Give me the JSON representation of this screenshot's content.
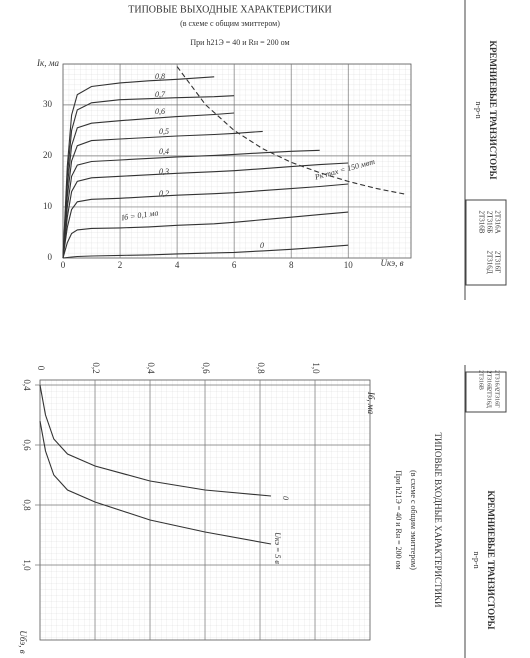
{
  "chart_data": [
    {
      "type": "line",
      "title": "ТИПОВЫЕ ВЫХОДНЫЕ ХАРАКТЕРИСТИКИ",
      "subtitle": "(в схеме с общим эмиттером)",
      "note": "При h21Э = 40 и Rн = 200 ом",
      "x_label": "Uкэ, в",
      "y_label": "Iк, ма",
      "xlim": [
        0,
        12.2
      ],
      "ylim": [
        0,
        38
      ],
      "xticks": [
        0,
        2,
        4,
        6,
        8,
        10
      ],
      "yticks": [
        0,
        10,
        20,
        30
      ],
      "grid": true,
      "color": "#333333",
      "x": [
        0,
        0.15,
        0.3,
        0.5,
        1,
        2,
        3,
        4,
        5.3,
        6,
        7,
        8,
        9,
        10
      ],
      "series": [
        {
          "name": "0,8",
          "values": [
            0,
            18,
            28,
            32,
            33.6,
            34.3,
            34.7,
            35,
            35.5,
            null,
            null,
            null,
            null,
            null
          ]
        },
        {
          "name": "0,7",
          "values": [
            0,
            16,
            25,
            29,
            30.4,
            31,
            31.2,
            31.4,
            31.6,
            31.8,
            null,
            null,
            null,
            null
          ]
        },
        {
          "name": "0,6",
          "values": [
            0,
            14,
            22,
            25.5,
            26.4,
            26.9,
            27.3,
            27.7,
            28.1,
            28.4,
            null,
            null,
            null,
            null
          ]
        },
        {
          "name": "0,5",
          "values": [
            0,
            12,
            19,
            22,
            23,
            23.3,
            23.6,
            23.9,
            24.2,
            24.4,
            24.8,
            null,
            null,
            null
          ]
        },
        {
          "name": "0,4",
          "values": [
            0,
            10,
            16,
            18.2,
            18.9,
            19.2,
            19.5,
            19.8,
            20.1,
            20.3,
            20.6,
            20.9,
            21.1,
            null
          ]
        },
        {
          "name": "0,3",
          "values": [
            0,
            8,
            13,
            15,
            15.7,
            16,
            16.3,
            16.6,
            16.9,
            17.1,
            17.5,
            17.9,
            18.3,
            18.6
          ]
        },
        {
          "name": "0,2",
          "values": [
            0,
            6,
            9.5,
            11,
            11.5,
            11.7,
            12,
            12.3,
            12.6,
            12.8,
            13.2,
            13.6,
            14,
            14.5
          ]
        },
        {
          "name": "Iб = 0,1 ма",
          "values": [
            0,
            3,
            4.8,
            5.5,
            5.8,
            5.9,
            6.1,
            6.4,
            6.7,
            7,
            7.5,
            8,
            8.5,
            9
          ]
        },
        {
          "name": "0",
          "values": [
            0,
            0.1,
            0.2,
            0.3,
            0.4,
            0.5,
            0.6,
            0.8,
            1,
            1.1,
            1.4,
            1.7,
            2.1,
            2.5
          ]
        },
        {
          "name": "Pк max = 150 мвт",
          "line_style": "dashed",
          "x": [
            4,
            5,
            6,
            7,
            8,
            9,
            10,
            11,
            12
          ],
          "values": [
            37.5,
            30,
            25,
            21.4,
            18.75,
            16.7,
            15,
            13.6,
            12.5
          ]
        }
      ]
    },
    {
      "type": "line",
      "title": "ТИПОВЫЕ ВХОДНЫЕ ХАРАКТЕРИСТИКИ",
      "subtitle": "(в схеме с общим эмиттером)",
      "note": "При h21Э = 40 и Rн = 200 ом",
      "x_label": "Iб, ма",
      "y_label": "Uбэ, в",
      "xlim": [
        0,
        1.2
      ],
      "ylim": [
        0.4,
        1.2
      ],
      "xticks": [
        0,
        {
          "value": 0.2,
          "label": "0,2"
        },
        {
          "value": 0.4,
          "label": "0,4"
        },
        {
          "value": 0.6,
          "label": "0,6"
        },
        {
          "value": 0.8,
          "label": "0,8"
        },
        {
          "value": 1,
          "label": "1,0"
        }
      ],
      "yticks": [
        {
          "value": 0.4,
          "label": "0,4"
        },
        {
          "value": 0.6,
          "label": "0,6"
        },
        {
          "value": 0.8,
          "label": "0,8"
        },
        {
          "value": 1,
          "label": "1,0"
        }
      ],
      "grid": true,
      "color": "#333333",
      "x": [
        0,
        0.02,
        0.05,
        0.1,
        0.2,
        0.4,
        0.6,
        0.84
      ],
      "series": [
        {
          "name": "0",
          "values": [
            0.4,
            0.5,
            0.58,
            0.63,
            0.67,
            0.72,
            0.75,
            0.77
          ]
        },
        {
          "name": "Uкэ = 5 в",
          "values": [
            0.52,
            0.62,
            0.7,
            0.75,
            0.79,
            0.85,
            0.89,
            0.93
          ]
        }
      ]
    }
  ],
  "sidebar": [
    {
      "heading": "КРЕМНИЕВЫЕ ТРАНЗИСТОРЫ",
      "type_label": "n-p-n",
      "models": [
        "2Т316А",
        "2Т316Б",
        "2Т316В",
        "2Т316Г",
        "2Т316Д"
      ]
    },
    {
      "heading": "КРЕМНИЕВЫЕ ТРАНЗИСТОРЫ",
      "type_label": "n-p-n",
      "models": [
        "2Т316А",
        "2Т316Б",
        "2Т316В",
        "2Т316Г",
        "2Т316Д"
      ]
    }
  ]
}
